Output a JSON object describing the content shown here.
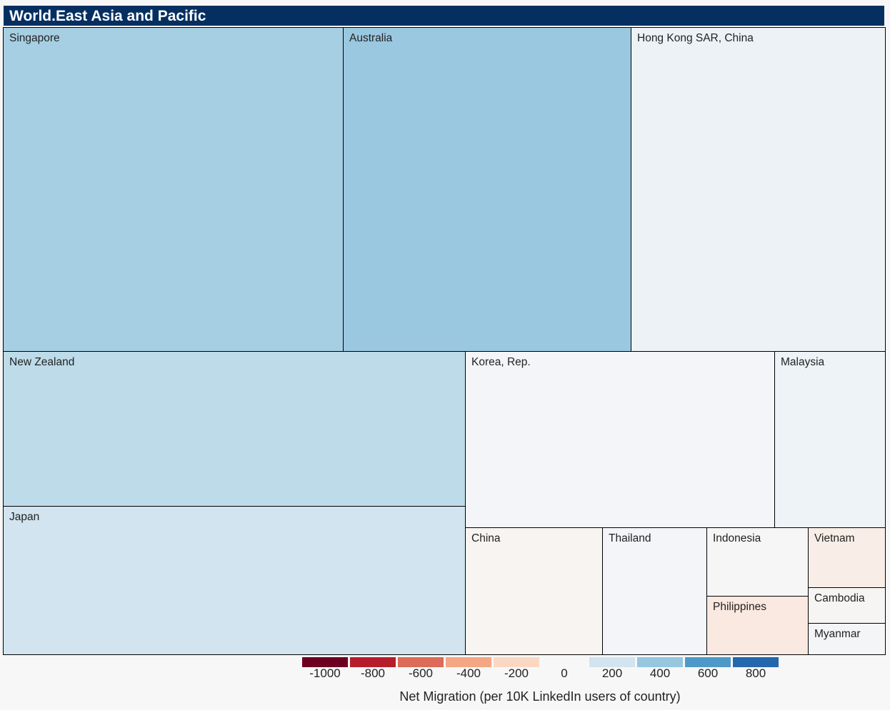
{
  "chart_data": {
    "type": "treemap",
    "title": "World.East Asia and Pacific",
    "nodes": [
      {
        "name": "Singapore",
        "color": "#a6cfe4"
      },
      {
        "name": "Australia",
        "color": "#9ac8e0"
      },
      {
        "name": "Hong Kong SAR, China",
        "color": "#edf2f7"
      },
      {
        "name": "New Zealand",
        "color": "#bddbe9"
      },
      {
        "name": "Korea, Rep.",
        "color": "#f3f5f8"
      },
      {
        "name": "Malaysia",
        "color": "#eef3f7"
      },
      {
        "name": "Japan",
        "color": "#d1e4ef"
      },
      {
        "name": "China",
        "color": "#f8f4f1"
      },
      {
        "name": "Thailand",
        "color": "#f3f5f8"
      },
      {
        "name": "Indonesia",
        "color": "#f6f6f6"
      },
      {
        "name": "Vietnam",
        "color": "#f8eee7"
      },
      {
        "name": "Philippines",
        "color": "#fae9e0"
      },
      {
        "name": "Cambodia",
        "color": "#f7f5f3"
      },
      {
        "name": "Myanmar",
        "color": "#f4f5f7"
      }
    ],
    "colorscale": {
      "title": "Net Migration (per 10K LinkedIn users of country)",
      "bins": [
        {
          "label": "-1000",
          "color": "#6d0021"
        },
        {
          "label": "-800",
          "color": "#b61d2b"
        },
        {
          "label": "-600",
          "color": "#dc6b58"
        },
        {
          "label": "-400",
          "color": "#f5a683"
        },
        {
          "label": "-200",
          "color": "#fcd8c4"
        },
        {
          "label": "0",
          "color": "#f7f7f7"
        },
        {
          "label": "200",
          "color": "#d1e4ef"
        },
        {
          "label": "400",
          "color": "#97c6df"
        },
        {
          "label": "600",
          "color": "#4d9ac8"
        },
        {
          "label": "800",
          "color": "#2467ad"
        }
      ]
    }
  }
}
